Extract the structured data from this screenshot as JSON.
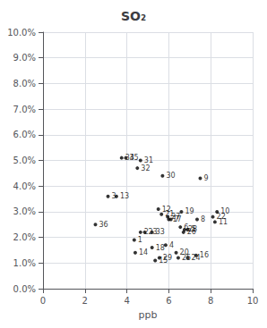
{
  "chart_data": {
    "type": "scatter",
    "title": "SO₂",
    "xlabel": "ppb",
    "xlim": [
      0,
      10
    ],
    "ylim": [
      0.0,
      0.1
    ],
    "xticks": [
      0,
      2,
      4,
      6,
      8,
      10
    ],
    "yticks": [
      {
        "value": 0.0,
        "label": "0.0%"
      },
      {
        "value": 0.01,
        "label": "1.0%"
      },
      {
        "value": 0.02,
        "label": "2.0%"
      },
      {
        "value": 0.03,
        "label": "3.0%"
      },
      {
        "value": 0.04,
        "label": "4.0%"
      },
      {
        "value": 0.05,
        "label": "5.0%"
      },
      {
        "value": 0.06,
        "label": "6.0%"
      },
      {
        "value": 0.07,
        "label": "7.0%"
      },
      {
        "value": 0.08,
        "label": "8.0%"
      },
      {
        "value": 0.09,
        "label": "9.0%"
      },
      {
        "value": 0.1,
        "label": "10.0%"
      }
    ],
    "grid": true,
    "color": "#000000",
    "x": [
      4.35,
      4.65,
      3.1,
      5.85,
      6.9,
      6.55,
      6.1,
      7.35,
      7.5,
      8.3,
      8.2,
      5.5,
      3.5,
      4.4,
      5.35,
      7.3,
      6.0,
      5.2,
      6.6,
      6.35,
      5.65,
      8.1,
      4.85,
      6.9,
      6.45,
      6.7,
      5.95,
      6.75,
      5.55,
      5.7,
      4.65,
      4.5,
      5.2,
      3.75,
      3.95,
      2.5
    ],
    "values": [
      0.019,
      0.022,
      0.036,
      0.017,
      0.023,
      0.024,
      0.027,
      0.027,
      0.043,
      0.03,
      0.026,
      0.031,
      0.036,
      0.014,
      0.011,
      0.013,
      0.027,
      0.016,
      0.03,
      0.014,
      0.029,
      0.028,
      0.022,
      0.012,
      0.012,
      0.022,
      0.028,
      0.023,
      0.012,
      0.044,
      0.05,
      0.047,
      0.022,
      0.051,
      0.051,
      0.025
    ],
    "labels": [
      "1",
      "2",
      "3",
      "4",
      "5",
      "6",
      "7",
      "8",
      "9",
      "10",
      "11",
      "12",
      "13",
      "14",
      "15",
      "16",
      "17",
      "18",
      "19",
      "20",
      "21",
      "22",
      "23",
      "24",
      "25",
      "26",
      "27",
      "28",
      "29",
      "30",
      "31",
      "32",
      "33",
      "34",
      "35",
      "36"
    ]
  }
}
